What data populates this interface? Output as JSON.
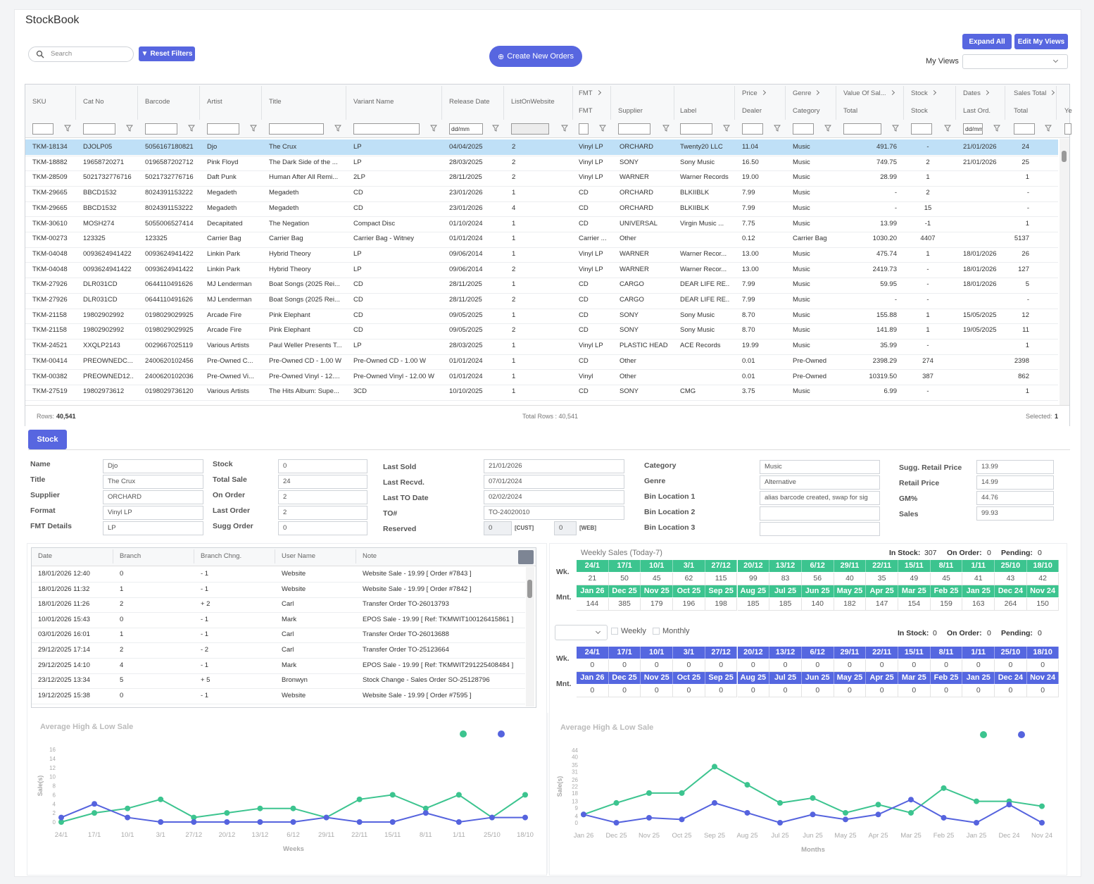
{
  "header": {
    "title": "StockBook"
  },
  "toolbar": {
    "search_placeholder": "Search",
    "reset_filters": "Reset Filters",
    "create_new_orders": "Create New Orders",
    "expand_all": "Expand All",
    "edit_my_views": "Edit My Views",
    "my_views": "My Views"
  },
  "grid": {
    "group_headers": [
      "FMT",
      "Price",
      "Genre",
      "Value Of Sal...",
      "Stock",
      "Dates",
      "Sales Total"
    ],
    "columns": [
      "SKU",
      "Cat No",
      "Barcode",
      "Artist",
      "Title",
      "Variant Name",
      "Release Date",
      "ListOnWebsite",
      "FMT",
      "Supplier",
      "Label",
      "Dealer",
      "Category",
      "Total",
      "Stock",
      "Last Ord.",
      "Total",
      "Ye"
    ],
    "date_placeholder": "dd/mm",
    "rows": [
      [
        "TKM-18134",
        "DJOLP05",
        "5056167180821",
        "Djo",
        "The Crux",
        "LP",
        "04/04/2025",
        "2",
        "Vinyl LP",
        "ORCHARD",
        "Twenty20 LLC",
        "11.04",
        "Music",
        "491.76",
        "-",
        "21/01/2026",
        "24"
      ],
      [
        "TKM-18882",
        "19658720271",
        "0196587202712",
        "Pink Floyd",
        "The Dark Side of the ...",
        "LP",
        "28/03/2025",
        "2",
        "Vinyl LP",
        "SONY",
        "Sony Music",
        "16.50",
        "Music",
        "749.75",
        "2",
        "21/01/2026",
        "25"
      ],
      [
        "TKM-28509",
        "5021732776716",
        "5021732776716",
        "Daft Punk",
        "Human After All Remi...",
        "2LP",
        "28/11/2025",
        "2",
        "Vinyl LP",
        "WARNER",
        "Warner Records",
        "19.00",
        "Music",
        "28.99",
        "1",
        null,
        "1"
      ],
      [
        "TKM-29665",
        "BBCD1532",
        "8024391153222",
        "Megadeth",
        "Megadeth",
        "CD",
        "23/01/2026",
        "1",
        "CD",
        "ORCHARD",
        "BLKIIBLK",
        "7.99",
        "Music",
        "-",
        "2",
        null,
        "-"
      ],
      [
        "TKM-29665",
        "BBCD1532",
        "8024391153222",
        "Megadeth",
        "Megadeth",
        "CD",
        "23/01/2026",
        "4",
        "CD",
        "ORCHARD",
        "BLKIIBLK",
        "7.99",
        "Music",
        "-",
        "15",
        null,
        "-"
      ],
      [
        "TKM-30610",
        "MOSH274",
        "5055006527414",
        "Decapitated",
        "The Negation",
        "Compact Disc",
        "01/10/2024",
        "1",
        "CD",
        "UNIVERSAL",
        "Virgin Music ...",
        "7.75",
        "Music",
        "13.99",
        "-1",
        null,
        "1"
      ],
      [
        "TKM-00273",
        "123325",
        "123325",
        "Carrier Bag",
        "Carrier Bag",
        "Carrier Bag - Witney",
        "01/01/2024",
        "1",
        "Carrier ...",
        "Other",
        null,
        "0.12",
        "Carrier Bag",
        "1030.20",
        "4407",
        null,
        "5137"
      ],
      [
        "TKM-04048",
        "0093624941422",
        "0093624941422",
        "Linkin Park",
        "Hybrid Theory",
        "LP",
        "09/06/2014",
        "1",
        "Vinyl LP",
        "WARNER",
        "Warner Recor...",
        "13.00",
        "Music",
        "475.74",
        "1",
        "18/01/2026",
        "26"
      ],
      [
        "TKM-04048",
        "0093624941422",
        "0093624941422",
        "Linkin Park",
        "Hybrid Theory",
        "LP",
        "09/06/2014",
        "2",
        "Vinyl LP",
        "WARNER",
        "Warner Recor...",
        "13.00",
        "Music",
        "2419.73",
        "-",
        "18/01/2026",
        "127"
      ],
      [
        "TKM-27926",
        "DLR031CD",
        "0644110491626",
        "MJ Lenderman",
        "Boat Songs (2025 Rei...",
        "CD",
        "28/11/2025",
        "1",
        "CD",
        "CARGO",
        "DEAR LIFE RE...",
        "7.99",
        "Music",
        "59.95",
        "-",
        "18/01/2026",
        "5"
      ],
      [
        "TKM-27926",
        "DLR031CD",
        "0644110491626",
        "MJ Lenderman",
        "Boat Songs (2025 Rei...",
        "CD",
        "28/11/2025",
        "2",
        "CD",
        "CARGO",
        "DEAR LIFE RE...",
        "7.99",
        "Music",
        "-",
        "-",
        null,
        "-"
      ],
      [
        "TKM-21158",
        "19802902992",
        "0198029029925",
        "Arcade Fire",
        "Pink Elephant",
        "CD",
        "09/05/2025",
        "1",
        "CD",
        "SONY",
        "Sony Music",
        "8.70",
        "Music",
        "155.88",
        "1",
        "15/05/2025",
        "12"
      ],
      [
        "TKM-21158",
        "19802902992",
        "0198029029925",
        "Arcade Fire",
        "Pink Elephant",
        "CD",
        "09/05/2025",
        "2",
        "CD",
        "SONY",
        "Sony Music",
        "8.70",
        "Music",
        "141.89",
        "1",
        "19/05/2025",
        "11"
      ],
      [
        "TKM-24521",
        "XXQLP2143",
        "0029667025119",
        "Various Artists",
        "Paul Weller Presents T...",
        "LP",
        "28/03/2025",
        "1",
        "Vinyl LP",
        "PLASTIC HEAD",
        "ACE Records",
        "19.99",
        "Music",
        "35.99",
        "-",
        null,
        "1"
      ],
      [
        "TKM-00414",
        "PREOWNEDC...",
        "2400620102456",
        "Pre-Owned C...",
        "Pre-Owned CD - 1.00 W",
        "Pre-Owned CD - 1.00 W",
        "01/01/2024",
        "1",
        "CD",
        "Other",
        null,
        "0.01",
        "Pre-Owned",
        "2398.29",
        "274",
        null,
        "2398"
      ],
      [
        "TKM-00382",
        "PREOWNED12...",
        "2400620102036",
        "Pre-Owned Vi...",
        "Pre-Owned Vinyl - 12....",
        "Pre-Owned Vinyl - 12.00 W",
        "01/01/2024",
        "1",
        "Vinyl",
        "Other",
        null,
        "0.01",
        "Pre-Owned",
        "10319.50",
        "387",
        null,
        "862"
      ],
      [
        "TKM-27519",
        "19802973612",
        "0198029736120",
        "Various Artists",
        "The Hits Album: Supe...",
        "3CD",
        "10/10/2025",
        "1",
        "CD",
        "SONY",
        "CMG",
        "3.75",
        "Music",
        "6.99",
        "-",
        null,
        "1"
      ]
    ],
    "footer": {
      "rows_label": "Rows:",
      "rows": "40,541",
      "total_rows": "Total Rows : 40,541",
      "selected_label": "Selected:",
      "selected": "1"
    }
  },
  "tab": "Stock",
  "details": {
    "columns": [
      [
        {
          "label": "Name",
          "value": "Djo"
        },
        {
          "label": "Title",
          "value": "The Crux"
        },
        {
          "label": "Supplier",
          "value": "ORCHARD"
        },
        {
          "label": "Format",
          "value": "Vinyl LP"
        },
        {
          "label": "FMT Details",
          "value": "LP"
        }
      ],
      [
        {
          "label": "Stock",
          "value": "0"
        },
        {
          "label": "Total Sale",
          "value": "24"
        },
        {
          "label": "On Order",
          "value": "2"
        },
        {
          "label": "Last Order",
          "value": "2"
        },
        {
          "label": "Sugg Order",
          "value": "0"
        }
      ],
      [
        {
          "label": "Last Sold",
          "value": "21/01/2026"
        },
        {
          "label": "Last Recvd.",
          "value": "07/01/2024"
        },
        {
          "label": "Last TO Date",
          "value": "02/02/2024"
        },
        {
          "label": "TO#",
          "value": "TO-24020010"
        }
      ],
      [
        {
          "label": "Category",
          "value": "Music"
        },
        {
          "label": "Genre",
          "value": "Alternative"
        },
        {
          "label": "Bin Location 1",
          "value": "alias barcode created, swap for sig"
        },
        {
          "label": "Bin Location 2",
          "value": null
        },
        {
          "label": "Bin Location 3",
          "value": null
        }
      ],
      [
        {
          "label": "Sugg. Retail Price",
          "value": "13.99"
        },
        {
          "label": "Retail Price",
          "value": "14.99"
        },
        {
          "label": "GM%",
          "value": "44.76"
        },
        {
          "label": "Sales",
          "value": "99.93"
        }
      ]
    ],
    "reserved": {
      "label": "Reserved",
      "cust": "0",
      "cust_tag": "[CUST]",
      "web": "0",
      "web_tag": "[WEB]"
    }
  },
  "history": {
    "columns": [
      "Date",
      "Branch",
      "Branch Chng.",
      "User Name",
      "Note"
    ],
    "rows": [
      [
        "18/01/2026 12:40",
        "0",
        "- 1",
        "Website",
        "Website Sale - 19.99 [ Order #7843 ]"
      ],
      [
        "18/01/2026 11:32",
        "1",
        "- 1",
        "Website",
        "Website Sale - 19.99 [ Order #7842 ]"
      ],
      [
        "18/01/2026 11:26",
        "2",
        "+ 2",
        "Carl",
        "Transfer Order TO-26013793"
      ],
      [
        "10/01/2026 15:43",
        "0",
        "- 1",
        "Mark",
        "EPOS Sale - 19.99 [ Ref: TKMWIT100126415861 ]"
      ],
      [
        "03/01/2026 16:01",
        "1",
        "- 1",
        "Carl",
        "Transfer Order TO-26013688"
      ],
      [
        "29/12/2025 17:14",
        "2",
        "- 2",
        "Carl",
        "Transfer Order TO-25123664"
      ],
      [
        "29/12/2025 14:10",
        "4",
        "- 1",
        "Mark",
        "EPOS Sale - 19.99 [ Ref: TKMWIT291225408484 ]"
      ],
      [
        "23/12/2025 13:34",
        "5",
        "+ 5",
        "Bronwyn",
        "Stock Change - Sales Order SO-25128796"
      ],
      [
        "19/12/2025 15:38",
        "0",
        "- 1",
        "Website",
        "Website Sale - 19.99 [ Order #7595 ]"
      ]
    ]
  },
  "weekly": [
    {
      "title": "Weekly Sales (Today-7)",
      "in_stock_label": "In Stock:",
      "in_stock": "307",
      "on_order_label": "On Order:",
      "on_order": "0",
      "pending_label": "Pending:",
      "pending": "0",
      "color": "#3cc48f",
      "week_label": "Wk.",
      "weeks": [
        "24/1",
        "17/1",
        "10/1",
        "3/1",
        "27/12",
        "20/12",
        "13/12",
        "6/12",
        "29/11",
        "22/11",
        "15/11",
        "8/11",
        "1/11",
        "25/10",
        "18/10"
      ],
      "week_values": [
        21,
        50,
        45,
        62,
        115,
        99,
        83,
        56,
        40,
        35,
        49,
        45,
        41,
        43,
        42
      ],
      "month_label": "Mnt.",
      "months": [
        "Jan 26",
        "Dec 25",
        "Nov 25",
        "Oct 25",
        "Sep 25",
        "Aug 25",
        "Jul 25",
        "Jun 25",
        "May 25",
        "Apr 25",
        "Mar 25",
        "Feb 25",
        "Jan 25",
        "Dec 24",
        "Nov 24"
      ],
      "month_values": [
        144,
        385,
        179,
        196,
        198,
        185,
        185,
        140,
        182,
        147,
        154,
        159,
        163,
        264,
        150
      ]
    },
    {
      "weekly_label": "Weekly",
      "monthly_label": "Monthly",
      "in_stock_label": "In Stock:",
      "in_stock": "0",
      "on_order_label": "On Order:",
      "on_order": "0",
      "pending_label": "Pending:",
      "pending": "0",
      "color": "#5567e0",
      "week_label": "Wk.",
      "weeks": [
        "24/1",
        "17/1",
        "10/1",
        "3/1",
        "27/12",
        "20/12",
        "13/12",
        "6/12",
        "29/11",
        "22/11",
        "15/11",
        "8/11",
        "1/11",
        "25/10",
        "18/10"
      ],
      "week_values": [
        0,
        0,
        0,
        0,
        0,
        0,
        0,
        0,
        0,
        0,
        0,
        0,
        0,
        0,
        0
      ],
      "month_label": "Mnt.",
      "months": [
        "Jan 26",
        "Dec 25",
        "Nov 25",
        "Oct 25",
        "Sep 25",
        "Aug 25",
        "Jul 25",
        "Jun 25",
        "May 25",
        "Apr 25",
        "Mar 25",
        "Feb 25",
        "Jan 25",
        "Dec 24",
        "Nov 24"
      ],
      "month_values": [
        0,
        0,
        0,
        0,
        0,
        0,
        0,
        0,
        0,
        0,
        0,
        0,
        0,
        0,
        0
      ]
    }
  ],
  "chart_data": [
    {
      "type": "line",
      "title": "Average High & Low Sale",
      "y_label": "Sale(s)",
      "x_label": "Weeks",
      "categories": [
        "24/1",
        "17/1",
        "10/1",
        "3/1",
        "27/12",
        "20/12",
        "13/12",
        "6/12",
        "29/11",
        "22/11",
        "15/11",
        "8/11",
        "1/11",
        "25/10",
        "18/10"
      ],
      "series": [
        {
          "color": "#3cc48f",
          "values": [
            0,
            2,
            3,
            5,
            1,
            2,
            3,
            3,
            1,
            5,
            6,
            3,
            6,
            1,
            6
          ]
        },
        {
          "color": "#5563de",
          "values": [
            1,
            4,
            1,
            0,
            0,
            0,
            0,
            0,
            1,
            0,
            0,
            2,
            0,
            1,
            1
          ]
        }
      ],
      "ylim": [
        0,
        16
      ],
      "yticks": [
        0,
        2,
        4,
        6,
        8,
        10,
        12,
        14,
        16
      ]
    },
    {
      "type": "line",
      "title": "Average High & Low Sale",
      "y_label": "Sale(s)",
      "x_label": "Months",
      "categories": [
        "Jan 26",
        "Dec 25",
        "Nov 25",
        "Oct 25",
        "Sep 25",
        "Aug 25",
        "Jul 25",
        "Jun 25",
        "May 25",
        "Apr 25",
        "Mar 25",
        "Feb 25",
        "Jan 25",
        "Dec 24",
        "Nov 24"
      ],
      "series": [
        {
          "color": "#3cc48f",
          "values": [
            5,
            12,
            18,
            18,
            34,
            23,
            12,
            15,
            6,
            11,
            6,
            21,
            13,
            13,
            10
          ]
        },
        {
          "color": "#5563de",
          "values": [
            5,
            0,
            3,
            2,
            12,
            6,
            0,
            5,
            2,
            5,
            14,
            3,
            0,
            11,
            0
          ]
        }
      ],
      "ylim": [
        0,
        44
      ],
      "yticks": [
        0,
        4,
        9,
        13,
        18,
        22,
        26,
        31,
        35,
        40,
        44
      ]
    }
  ]
}
